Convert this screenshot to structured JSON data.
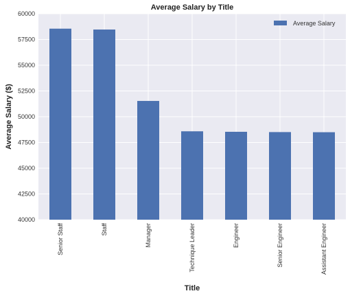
{
  "chart_data": {
    "type": "bar",
    "title": "Average Salary by Title",
    "xlabel": "Title",
    "ylabel": "Average Salary ($)",
    "categories": [
      "Senior Staff",
      "Staff",
      "Manager",
      "Technique Leader",
      "Engineer",
      "Senior Engineer",
      "Assistant Engineer"
    ],
    "series": [
      {
        "name": "Average Salary",
        "values": [
          58550,
          58465,
          51531,
          48583,
          48535,
          48507,
          48494
        ]
      }
    ],
    "ylim": [
      40000,
      60000
    ],
    "yticks": [
      "40000",
      "42500",
      "45000",
      "47500",
      "50000",
      "52500",
      "55000",
      "57500",
      "60000"
    ],
    "grid": true,
    "legend_position": "top-right",
    "colors": {
      "bar": "#4c72b0",
      "background": "#eaeaf2",
      "grid": "#ffffff"
    }
  }
}
